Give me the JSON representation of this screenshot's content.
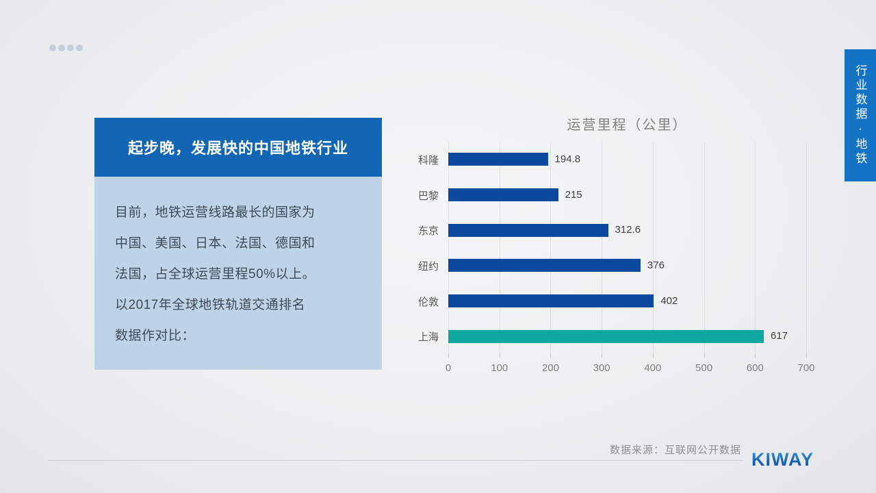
{
  "decor": {
    "top_dots": 4,
    "dot_color": "#c5cedb"
  },
  "side_tab": {
    "label": "行业数据·地铁",
    "bg_color": "#1573c6"
  },
  "left_panel": {
    "title": "起步晚，发展快的中国地铁行业",
    "title_bg": "#1366b4",
    "body_bg": "#bed3e5",
    "body_text": "目前，地铁运营线路最长的国家为\n中国、美国、日本、法国、德国和\n法国，占全球运营里程50%以上。\n以2017年全球地铁轨道交通排名\n数据作对比："
  },
  "chart_data": {
    "type": "bar",
    "orientation": "horizontal",
    "title": "运营里程（公里）",
    "categories": [
      "科隆",
      "巴黎",
      "东京",
      "纽约",
      "伦敦",
      "上海"
    ],
    "values": [
      194.8,
      215,
      312.6,
      376,
      402,
      617
    ],
    "value_labels": [
      "194.8",
      "215",
      "312.6",
      "376",
      "402",
      "617"
    ],
    "xlim": [
      0,
      700
    ],
    "xticks": [
      0,
      100,
      200,
      300,
      400,
      500,
      600,
      700
    ],
    "grid": true,
    "legend": "none",
    "bar_color": "#0b4a9e",
    "highlight_index": 5,
    "highlight_color": "#10a7a0",
    "title_color": "#808080"
  },
  "footer": {
    "source": "数据来源：互联网公开数据",
    "logo": "KIWAY",
    "logo_color": "#1059ab"
  }
}
